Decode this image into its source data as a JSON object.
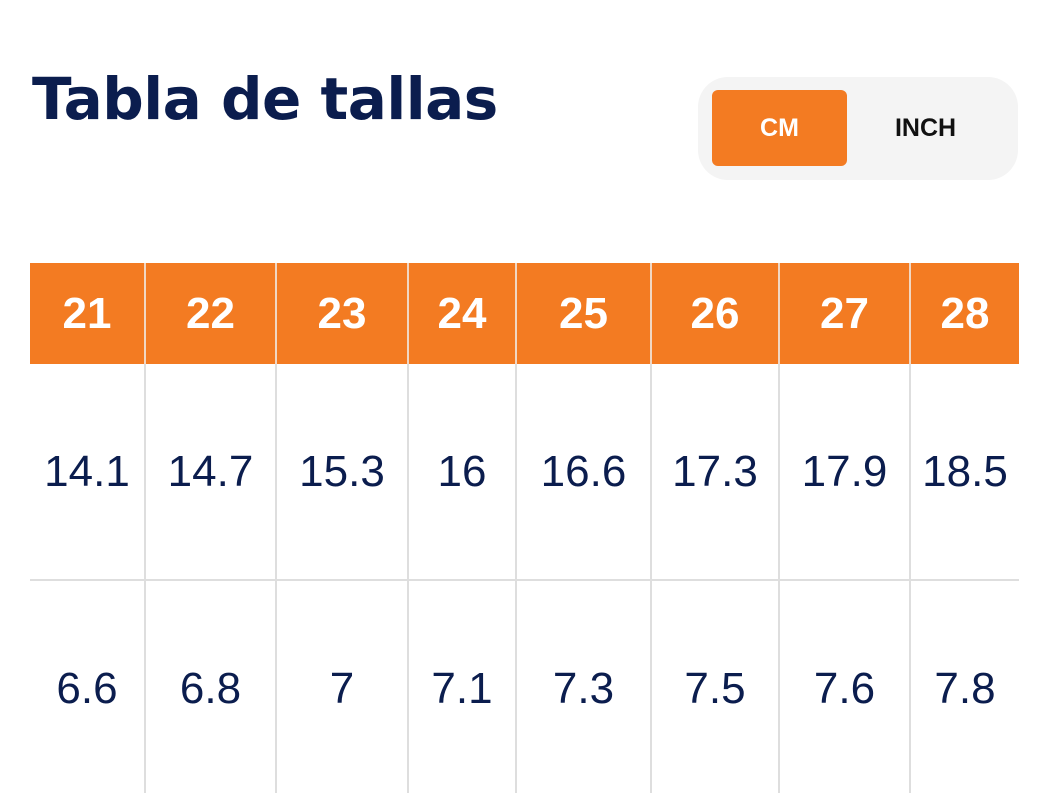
{
  "title": "Tabla de tallas",
  "unit_toggle": {
    "options": [
      "CM",
      "INCH"
    ],
    "selected": "CM"
  },
  "table": {
    "headers": [
      "21",
      "22",
      "23",
      "24",
      "25",
      "26",
      "27",
      "28"
    ],
    "rows": [
      [
        "14.1",
        "14.7",
        "15.3",
        "16",
        "16.6",
        "17.3",
        "17.9",
        "18.5"
      ],
      [
        "6.6",
        "6.8",
        "7",
        "7.1",
        "7.3",
        "7.5",
        "7.6",
        "7.8"
      ]
    ]
  },
  "colors": {
    "accent": "#f37b22",
    "title": "#0b1d4e",
    "text": "#0b1d4e",
    "toggle_bg": "#f4f4f4"
  }
}
